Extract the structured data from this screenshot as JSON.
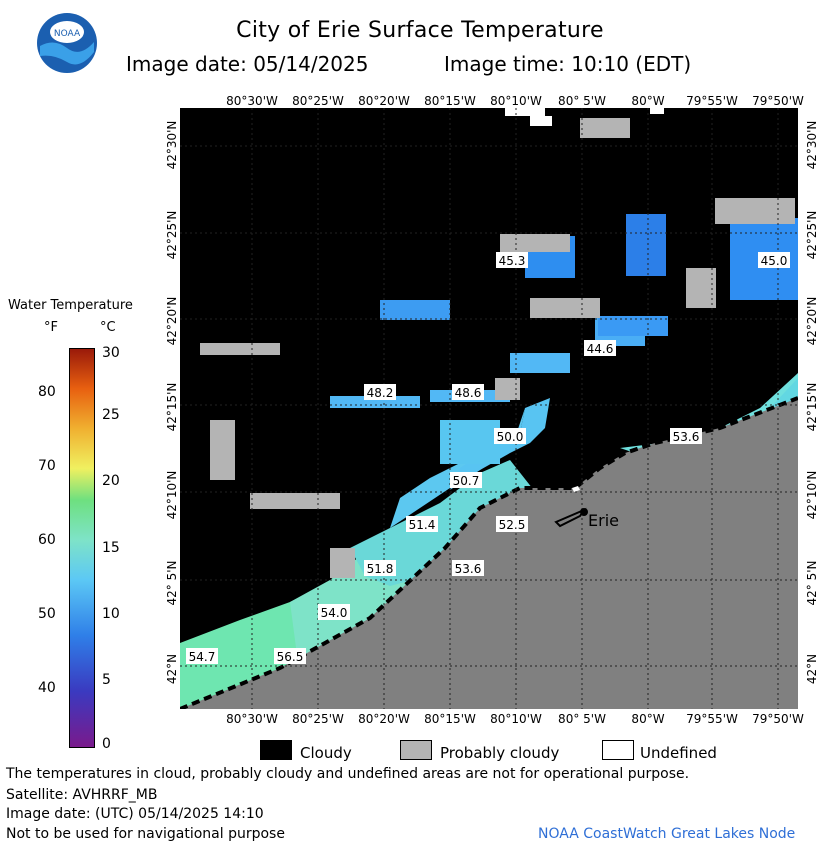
{
  "header": {
    "title": "City of Erie Surface Temperature",
    "image_date": "Image date: 05/14/2025",
    "image_time": "Image time: 10:10 (EDT)",
    "logo_text": "NOAA"
  },
  "map": {
    "lon_labels": [
      "80°30'W",
      "80°25'W",
      "80°20'W",
      "80°15'W",
      "80°10'W",
      "80° 5'W",
      "80°W",
      "79°55'W",
      "79°50'W"
    ],
    "lat_labels": [
      "42°30'N",
      "42°25'N",
      "42°20'N",
      "42°15'N",
      "42°10'N",
      "42° 5'N",
      "42°N"
    ],
    "city_label": "Erie",
    "temperature_labels": [
      "45.3",
      "45.0",
      "44.6",
      "48.2",
      "48.6",
      "50.0",
      "53.6",
      "50.7",
      "51.4",
      "52.5",
      "51.8",
      "53.6",
      "54.0",
      "54.7",
      "56.5"
    ],
    "colors": {
      "land": "#808080",
      "cloudy": "#000000",
      "probably_cloudy": "#b4b4b4",
      "undefined": "#ffffff"
    }
  },
  "legend": {
    "title": "Water Temperature",
    "unit_f": "°F",
    "unit_c": "°C",
    "ticks_f": [
      "80",
      "70",
      "60",
      "50",
      "40"
    ],
    "ticks_c": [
      "30",
      "25",
      "20",
      "15",
      "10",
      "5",
      "0"
    ],
    "scale_f_range": [
      32,
      86
    ],
    "scale_c_range": [
      0,
      30
    ]
  },
  "key": {
    "cloudy": "Cloudy",
    "probably_cloudy": "Probably cloudy",
    "undefined": "Undefined"
  },
  "footer": {
    "notice": "The temperatures in cloud, probably cloudy and undefined areas are not for operational purpose.",
    "satellite": "Satellite: AVHRRF_MB",
    "image_date_utc": "Image date: (UTC) 05/14/2025  14:10",
    "nav_warning": "Not to be used for navigational purpose",
    "credit": "NOAA CoastWatch Great Lakes Node"
  }
}
